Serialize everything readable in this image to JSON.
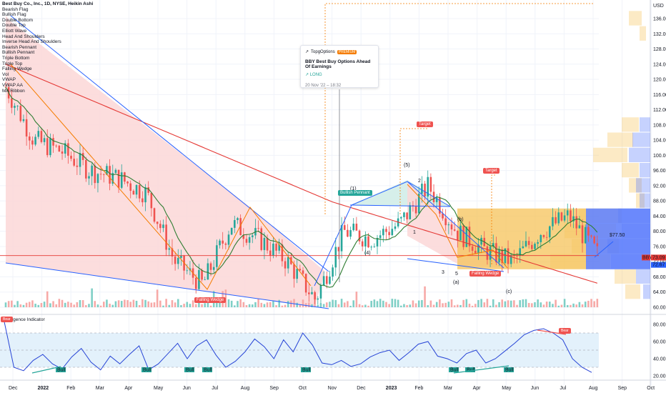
{
  "header": {
    "symbol_line": "Best Buy Co., Inc., 1D, NYSE, Heikin Ashi"
  },
  "legend_items": [
    "Bearish Flag",
    "Bullish Flag",
    "Double Bottom",
    "Double Top",
    "Elliott Wave",
    "Head And Shoulders",
    "Inverse Head And Shoulders",
    "Bearish Pennant",
    "Bullish Pennant",
    "Triple Bottom",
    "Triple Top",
    "Falling Wedge",
    "Vol",
    "VWAP",
    "VWAP AA",
    "MA Ribbon"
  ],
  "idea_card": {
    "author": "TopgOptions",
    "badge": "PREMIUM",
    "title": "BBY Best Buy Options Ahead Of Earnings",
    "direction": "LONG",
    "time": "20 Nov '22 – 18:32"
  },
  "annotations": {
    "bullish_pennant": "Bullish Pennant",
    "falling_wedge_1": "Falling Wedge",
    "falling_wedge_2": "Falling Wedge",
    "target_1": "Target",
    "target_2": "Target",
    "price_callout": "$77.50",
    "indicator_title": "Divergence Indicator",
    "bear_1": "Bear",
    "bear_2": "Bear",
    "bull": "Bull"
  },
  "wave_labels": {
    "w1": "(1)",
    "w4": "(4)",
    "w5": "(5)",
    "wb": "(b)",
    "wa": "(a)",
    "wc": "(c)",
    "o1": "1",
    "o2": "2",
    "o3": "3",
    "o5": "5"
  },
  "price_tags": {
    "last": "73.09",
    "second": "72.67",
    "symbol": "BBY"
  },
  "colors": {
    "up": "#26a69a",
    "down": "#ef5350",
    "blue_trend": "#2962ff",
    "orange": "#f57c00",
    "ma_red": "#e53935",
    "ma_green": "#2e7d32",
    "wedge_fill": "#fcd7d7",
    "pennant_fill": "#d2ede8",
    "vp_blue": "#5b7dfb",
    "vp_orange": "#f6c35a",
    "rsi_line": "#2744d6",
    "rsi_band": "#e3f1fb"
  },
  "chart_data": [
    {
      "type": "candlestick",
      "title": "Best Buy Co., Inc., 1D, NYSE, Heikin Ashi",
      "x_axis_labels": [
        "Dec",
        "2022",
        "Feb",
        "Mar",
        "Apr",
        "May",
        "Jun",
        "Jul",
        "Aug",
        "Sep",
        "Oct",
        "Nov",
        "Dec",
        "2023",
        "Feb",
        "Mar",
        "Apr",
        "May",
        "Jun",
        "Jul",
        "Aug",
        "Sep",
        "Oct"
      ],
      "y_axis_labels": [
        60,
        64,
        68,
        72,
        76,
        80,
        84,
        88,
        92,
        96,
        100,
        104,
        108,
        112,
        116,
        120,
        124,
        128,
        132,
        136
      ],
      "y_unit": "USD",
      "ylim": [
        60,
        140
      ],
      "grid": true,
      "series": [
        {
          "name": "price_path",
          "x": [
            "Nov 2021",
            "Dec 2021",
            "Jan 2022",
            "Feb 2022",
            "Mar 2022",
            "Apr 2022",
            "May 2022",
            "Jun 2022",
            "Jul 2022",
            "Aug 2022",
            "Sep 2022",
            "Oct 2022",
            "Nov 2022",
            "Dec 2022",
            "Jan 2023",
            "Feb 2023",
            "Mar 2023",
            "Apr 2023",
            "May 2023",
            "Jun 2023",
            "Jul 2023",
            "Aug 2023"
          ],
          "values": [
            118,
            104,
            101,
            96,
            94,
            90,
            72,
            66,
            82,
            78,
            72,
            62,
            80,
            78,
            82,
            92,
            80,
            75,
            72,
            80,
            84,
            74
          ]
        }
      ],
      "last_price": 73.09,
      "callout_price": 77.5
    },
    {
      "type": "line",
      "title": "Divergence Indicator",
      "y_axis_labels": [
        20,
        40,
        60,
        80
      ],
      "ylim": [
        15,
        85
      ],
      "band": [
        30,
        70
      ],
      "series": [
        {
          "name": "",
          "values": [
            83,
            30,
            26,
            38,
            45,
            34,
            28,
            42,
            52,
            36,
            27,
            43,
            34,
            45,
            55,
            27,
            34,
            46,
            58,
            40,
            55,
            62,
            44,
            30,
            37,
            48,
            63,
            54,
            40,
            62,
            48,
            70,
            56,
            35,
            33,
            38,
            31,
            34,
            42,
            47,
            50,
            38,
            47,
            57,
            60,
            43,
            40,
            35,
            46,
            50,
            35,
            40,
            49,
            58,
            68,
            73,
            75,
            70,
            62,
            40,
            30,
            24
          ]
        }
      ]
    }
  ]
}
